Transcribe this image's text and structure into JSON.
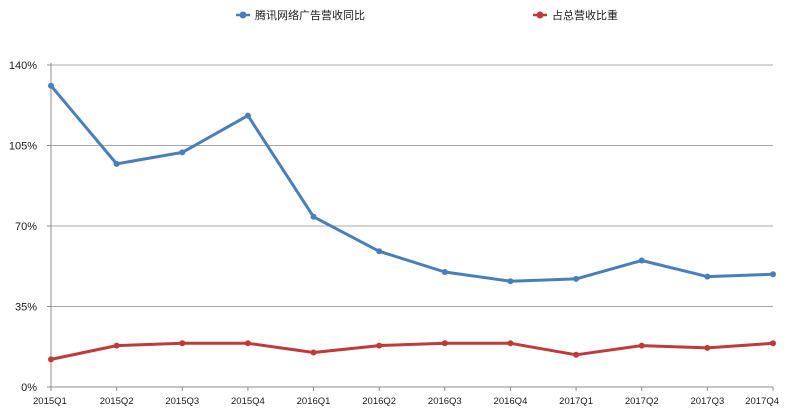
{
  "chart_data": {
    "type": "line",
    "categories": [
      "2015Q1",
      "2015Q2",
      "2015Q3",
      "2015Q4",
      "2016Q1",
      "2016Q2",
      "2016Q3",
      "2016Q4",
      "2017Q1",
      "2017Q2",
      "2017Q3",
      "2017Q4"
    ],
    "series": [
      {
        "name": "腾讯网络广告营收同比",
        "color": "#4a7ebb",
        "values": [
          131,
          97,
          102,
          118,
          74,
          59,
          50,
          46,
          47,
          55,
          48,
          49
        ]
      },
      {
        "name": "占总营收比重",
        "color": "#c0393b",
        "values": [
          12,
          18,
          19,
          19,
          15,
          18,
          19,
          19,
          14,
          18,
          17,
          19
        ]
      }
    ],
    "ylim": [
      0,
      140
    ],
    "yticks": [
      0,
      35,
      70,
      105,
      140
    ],
    "ytick_labels": [
      "0%",
      "35%",
      "70%",
      "105%",
      "140%"
    ],
    "grid": true,
    "legend_position": "top"
  }
}
